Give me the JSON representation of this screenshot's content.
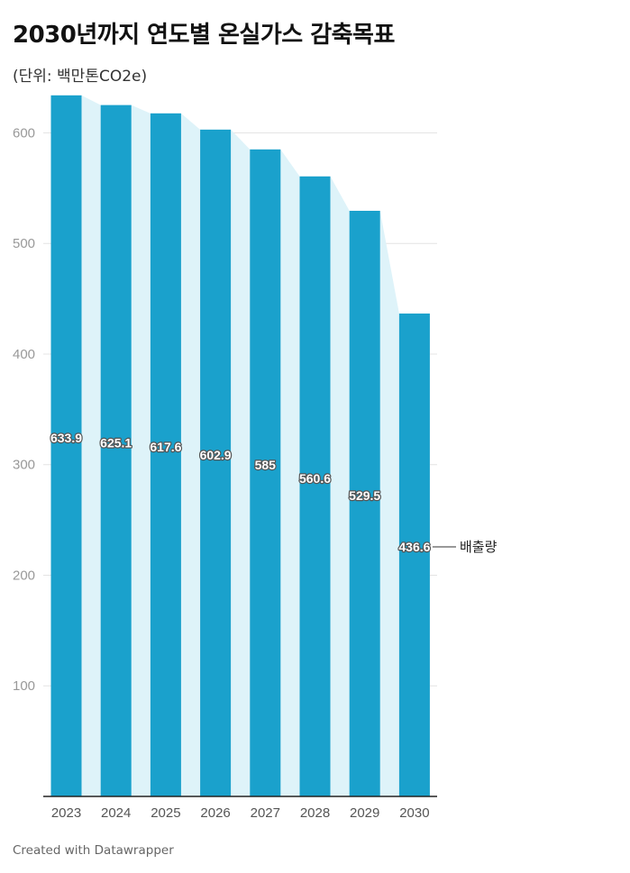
{
  "title": "2030년까지 연도별 온실가스 감축목표",
  "subtitle": "(단위: 백만톤CO2e)",
  "credit": "Created with Datawrapper",
  "colors": {
    "bar": "#1aa1cc",
    "area": "#def3f9",
    "grid": "#e4e4e4",
    "axis": "#222222",
    "tick": "#999999",
    "label": "#ffffff"
  },
  "chart_data": {
    "type": "bar",
    "title": "2030년까지 연도별 온실가스 감축목표",
    "subtitle": "(단위: 백만톤CO2e)",
    "categories": [
      "2023",
      "2024",
      "2025",
      "2026",
      "2027",
      "2028",
      "2029",
      "2030"
    ],
    "series": [
      {
        "name": "배출량",
        "values": [
          633.9,
          625.1,
          617.6,
          602.9,
          585,
          560.6,
          529.5,
          436.6
        ]
      }
    ],
    "value_labels": [
      "633.9",
      "625.1",
      "617.6",
      "602.9",
      "585",
      "560.6",
      "529.5",
      "436.6"
    ],
    "ylim": [
      0,
      650
    ],
    "yticks": [
      100,
      200,
      300,
      400,
      500,
      600
    ],
    "grid": true,
    "series_label_placement": "right of last bar"
  }
}
